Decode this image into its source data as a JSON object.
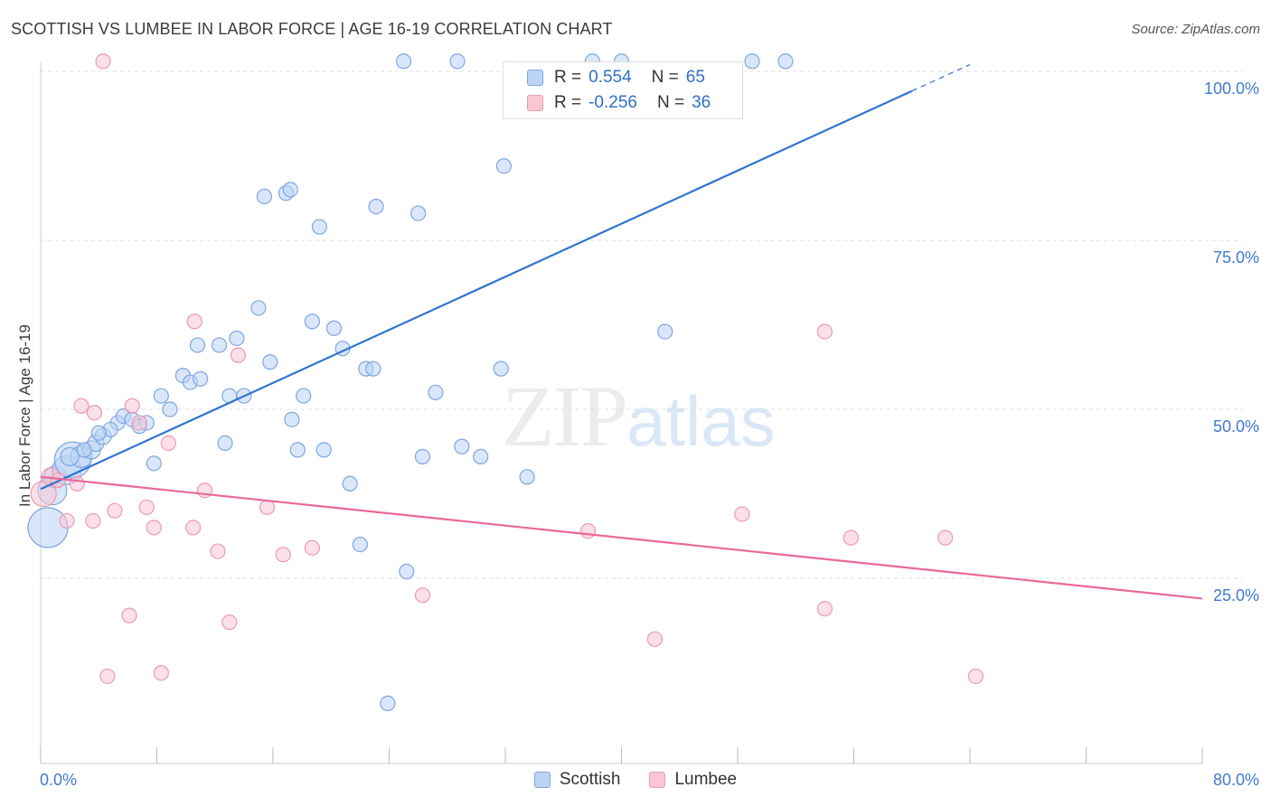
{
  "header": {
    "title": "SCOTTISH VS LUMBEE IN LABOR FORCE | AGE 16-19 CORRELATION CHART",
    "source": "Source: ZipAtlas.com"
  },
  "legend": {
    "rows": [
      {
        "r_label": "R =",
        "r_value": "0.554",
        "n_label": "N =",
        "n_value": "65"
      },
      {
        "r_label": "R =",
        "r_value": "-0.256",
        "n_label": "N =",
        "n_value": "36"
      }
    ]
  },
  "bottom_legend": {
    "series1": "Scottish",
    "series2": "Lumbee"
  },
  "watermark": {
    "zip": "ZIP",
    "atlas": "atlas"
  },
  "colors": {
    "scottish_fill": "#bcd4f6",
    "scottish_stroke": "#7ea6e0",
    "scottish_line": "#2f74d0",
    "lumbee_fill": "#f9c6d4",
    "lumbee_stroke": "#eb9ab4",
    "lumbee_line": "#e8699a",
    "tick_label": "#3f7ad0",
    "grid": "#dddddd"
  },
  "chart_data": {
    "type": "scatter",
    "title": "SCOTTISH VS LUMBEE IN LABOR FORCE | AGE 16-19 CORRELATION CHART",
    "xlabel": "",
    "ylabel": "In Labor Force | Age 16-19",
    "xlim": [
      0,
      80
    ],
    "ylim": [
      0,
      103
    ],
    "x_tick_labels": [
      "0.0%",
      "80.0%"
    ],
    "y_ticks": [
      25,
      50,
      75,
      100
    ],
    "y_tick_labels": [
      "25.0%",
      "50.0%",
      "75.0%",
      "100.0%"
    ],
    "grid": true,
    "legend_position": "top-center",
    "series": [
      {
        "name": "Scottish",
        "r": 0.554,
        "n": 65,
        "trend": {
          "x": [
            0,
            60
          ],
          "y": [
            38.2,
            97.1
          ],
          "dashed_to": [
            64,
            101
          ]
        },
        "points": [
          [
            0.5,
            32.5,
            22
          ],
          [
            0.8,
            38,
            16
          ],
          [
            1.0,
            40,
            12
          ],
          [
            1.8,
            41,
            16
          ],
          [
            2.2,
            42.5,
            20
          ],
          [
            2.8,
            43,
            12
          ],
          [
            3.5,
            44,
            10
          ],
          [
            3.8,
            45,
            9
          ],
          [
            4.3,
            46,
            9
          ],
          [
            5.3,
            48,
            8
          ],
          [
            4.8,
            47,
            8
          ],
          [
            5.7,
            49,
            8
          ],
          [
            6.3,
            48.5,
            8
          ],
          [
            6.8,
            47.5,
            8
          ],
          [
            7.3,
            48,
            8
          ],
          [
            7.8,
            42,
            8
          ],
          [
            8.3,
            52,
            8
          ],
          [
            8.9,
            50,
            8
          ],
          [
            9.8,
            55,
            8
          ],
          [
            10.3,
            54,
            8
          ],
          [
            11.0,
            54.5,
            8
          ],
          [
            10.8,
            59.5,
            8
          ],
          [
            12.3,
            59.5,
            8
          ],
          [
            13.0,
            52,
            8
          ],
          [
            13.5,
            60.5,
            8
          ],
          [
            14.0,
            52,
            8
          ],
          [
            12.7,
            45,
            8
          ],
          [
            15.0,
            65,
            8
          ],
          [
            15.8,
            57,
            8
          ],
          [
            17.3,
            48.5,
            8
          ],
          [
            17.7,
            44,
            8
          ],
          [
            18.1,
            52,
            8
          ],
          [
            18.7,
            63,
            8
          ],
          [
            19.2,
            77,
            8
          ],
          [
            19.5,
            44,
            8
          ],
          [
            20.2,
            62,
            8
          ],
          [
            20.8,
            59,
            8
          ],
          [
            21.3,
            39,
            8
          ],
          [
            22.0,
            30,
            8
          ],
          [
            22.4,
            56,
            8
          ],
          [
            22.9,
            56,
            8
          ],
          [
            23.1,
            80,
            8
          ],
          [
            25.2,
            26,
            8
          ],
          [
            26.3,
            43,
            8
          ],
          [
            26.0,
            79,
            8
          ],
          [
            27.2,
            52.5,
            8
          ],
          [
            29.0,
            44.5,
            8
          ],
          [
            30.3,
            43,
            8
          ],
          [
            31.7,
            56,
            8
          ],
          [
            33.5,
            40,
            8
          ],
          [
            43.0,
            61.5,
            8
          ],
          [
            23.9,
            6.5,
            8
          ],
          [
            15.4,
            81.5,
            8
          ],
          [
            16.9,
            82,
            8
          ],
          [
            17.2,
            82.5,
            8
          ],
          [
            31.9,
            86,
            8
          ],
          [
            25.0,
            101.5,
            8
          ],
          [
            28.7,
            101.5,
            8
          ],
          [
            38.0,
            101.5,
            8
          ],
          [
            40.0,
            101.5,
            8
          ],
          [
            49.0,
            101.5,
            8
          ],
          [
            51.3,
            101.5,
            8
          ],
          [
            2.0,
            43,
            10
          ],
          [
            3.0,
            44,
            8
          ],
          [
            4.0,
            46.5,
            8
          ]
        ]
      },
      {
        "name": "Lumbee",
        "r": -0.256,
        "n": 36,
        "trend": {
          "x": [
            0,
            80
          ],
          "y": [
            40.0,
            22.0
          ]
        },
        "points": [
          [
            0.2,
            37.5,
            14
          ],
          [
            0.7,
            40,
            10
          ],
          [
            1.2,
            39.5,
            8
          ],
          [
            1.8,
            33.5,
            8
          ],
          [
            2.5,
            39,
            8
          ],
          [
            2.8,
            50.5,
            8
          ],
          [
            3.6,
            33.5,
            8
          ],
          [
            3.7,
            49.5,
            8
          ],
          [
            4.6,
            10.5,
            8
          ],
          [
            5.1,
            35,
            8
          ],
          [
            6.1,
            19.5,
            8
          ],
          [
            6.3,
            50.5,
            8
          ],
          [
            6.8,
            48,
            8
          ],
          [
            7.3,
            35.5,
            8
          ],
          [
            7.8,
            32.5,
            8
          ],
          [
            8.3,
            11,
            8
          ],
          [
            8.8,
            45,
            8
          ],
          [
            10.5,
            32.5,
            8
          ],
          [
            10.6,
            63,
            8
          ],
          [
            11.3,
            38,
            8
          ],
          [
            12.2,
            29,
            8
          ],
          [
            13.0,
            18.5,
            8
          ],
          [
            13.6,
            58,
            8
          ],
          [
            15.6,
            35.5,
            8
          ],
          [
            16.7,
            28.5,
            8
          ],
          [
            18.7,
            29.5,
            8
          ],
          [
            26.3,
            22.5,
            8
          ],
          [
            37.7,
            32,
            8
          ],
          [
            42.3,
            16,
            8
          ],
          [
            48.3,
            34.5,
            8
          ],
          [
            54.0,
            20.5,
            8
          ],
          [
            54.0,
            61.5,
            8
          ],
          [
            55.8,
            31,
            8
          ],
          [
            62.3,
            31,
            8
          ],
          [
            64.4,
            10.5,
            8
          ],
          [
            4.3,
            101.5,
            8
          ]
        ]
      }
    ]
  }
}
